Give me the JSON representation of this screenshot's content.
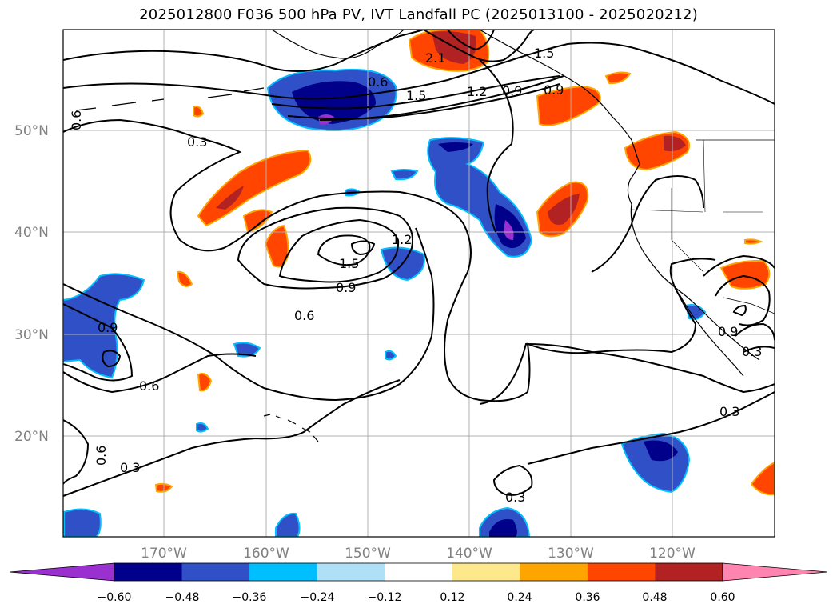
{
  "title": "2025012800 F036 500 hPa PV, IVT Landfall PC (2025013100 - 2025020212)",
  "map": {
    "lon_range": [
      -180,
      -110
    ],
    "lat_range": [
      10,
      60
    ],
    "lat_ticks": [
      "20°N",
      "30°N",
      "40°N",
      "50°N"
    ],
    "lon_ticks": [
      "170°W",
      "160°W",
      "150°W",
      "140°W",
      "130°W",
      "120°W"
    ],
    "contour_labels": [
      "0.3",
      "0.6",
      "0.9",
      "1.2",
      "1.5",
      "2.1",
      "0.9",
      "1.2",
      "1.5",
      "0.9",
      "0.6",
      "0.9",
      "0.6",
      "0.3",
      "0.3",
      "0.3",
      "0.6",
      "1.5",
      "0.9",
      "0.3",
      "0.6"
    ]
  },
  "colorbar": {
    "labels": [
      "−0.60",
      "−0.48",
      "−0.36",
      "−0.24",
      "−0.12",
      "0.12",
      "0.24",
      "0.36",
      "0.48",
      "0.60"
    ],
    "colors": [
      "#9b30d0",
      "#00008b",
      "#3050c8",
      "#00bfff",
      "#b0e0f8",
      "#ffffff",
      "#fde88c",
      "#ffa500",
      "#ff4500",
      "#b22222",
      "#ff85b0"
    ]
  }
}
